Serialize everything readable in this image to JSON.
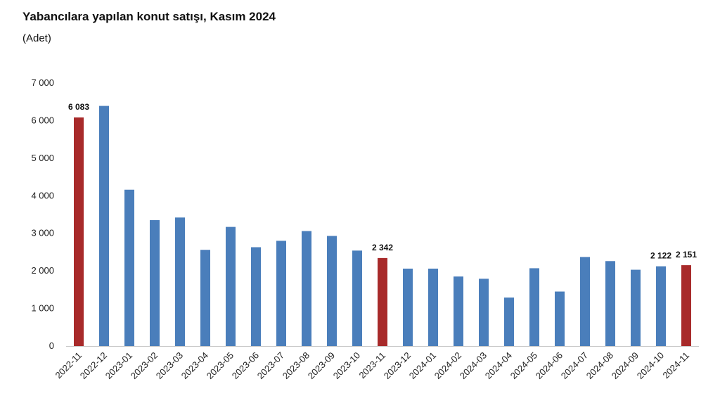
{
  "title": "Yabancılara yapılan konut satışı, Kasım 2024",
  "subtitle": "(Adet)",
  "colors": {
    "normal": "#4a7ebb",
    "highlight": "#a82a2a",
    "axis": "#c8c8c8"
  },
  "chart_data": {
    "type": "bar",
    "categories": [
      "2022-11",
      "2022-12",
      "2023-01",
      "2023-02",
      "2023-03",
      "2023-04",
      "2023-05",
      "2023-06",
      "2023-07",
      "2023-08",
      "2023-09",
      "2023-10",
      "2023-11",
      "2023-12",
      "2024-01",
      "2024-02",
      "2024-03",
      "2024-04",
      "2024-05",
      "2024-06",
      "2024-07",
      "2024-08",
      "2024-09",
      "2024-10",
      "2024-11"
    ],
    "values": [
      6083,
      6390,
      4160,
      3350,
      3420,
      2560,
      3170,
      2630,
      2800,
      3060,
      2930,
      2540,
      2342,
      2060,
      2060,
      1850,
      1790,
      1290,
      2070,
      1450,
      2370,
      2260,
      2030,
      2122,
      2151
    ],
    "highlight": [
      true,
      false,
      false,
      false,
      false,
      false,
      false,
      false,
      false,
      false,
      false,
      false,
      true,
      false,
      false,
      false,
      false,
      false,
      false,
      false,
      false,
      false,
      false,
      false,
      true
    ],
    "data_labels": {
      "0": "6 083",
      "12": "2 342",
      "23": "2 122",
      "24": "2 151"
    },
    "ylim": [
      0,
      7000
    ],
    "yticks": [
      0,
      1000,
      2000,
      3000,
      4000,
      5000,
      6000,
      7000
    ],
    "ytick_labels": [
      "0",
      "1 000",
      "2 000",
      "3 000",
      "4 000",
      "5 000",
      "6 000",
      "7 000"
    ],
    "grid": false,
    "legend": "none"
  }
}
